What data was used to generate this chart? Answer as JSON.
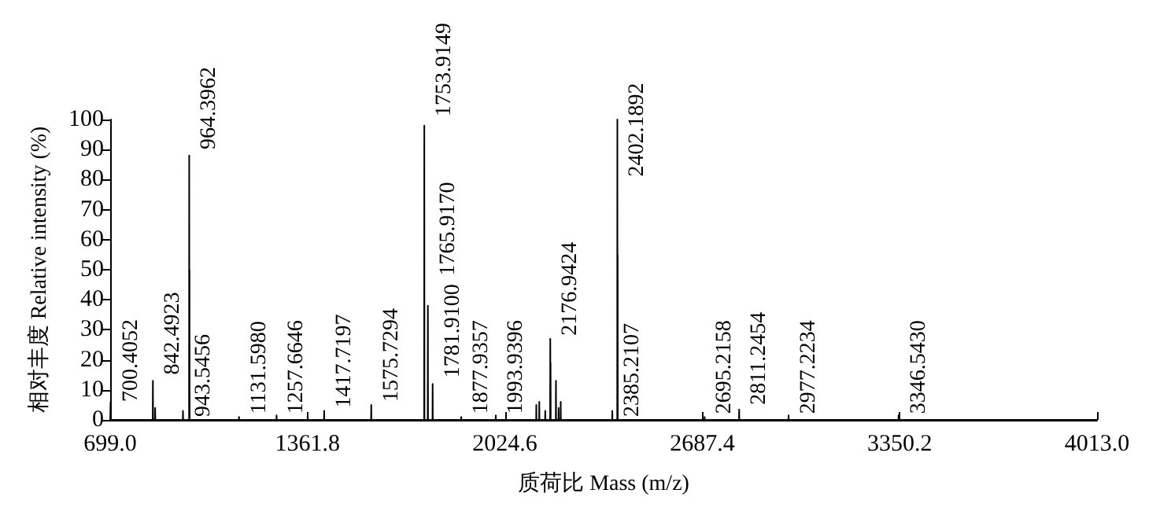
{
  "chart_data": {
    "type": "line",
    "xlabel": "质荷比 Mass (m/z)",
    "ylabel": "相对丰度 Relative intensity (%)",
    "x": [
      699.0,
      699.9,
      700.4,
      700.9,
      841.9,
      842.4923,
      843.1,
      849.5,
      850.0,
      850.5,
      943.0,
      943.5456,
      944.0,
      963.9,
      964.3962,
      964.9,
      965.4,
      965.9,
      1131.1,
      1131.598,
      1132.1,
      1257.1,
      1257.6646,
      1258.2,
      1417.2,
      1417.7197,
      1418.2,
      1575.2,
      1575.7294,
      1576.2,
      1753.4,
      1753.9149,
      1754.4,
      1765.4,
      1765.917,
      1766.4,
      1781.4,
      1781.91,
      1782.4,
      1877.4,
      1877.9357,
      1878.4,
      1993.4,
      1993.9396,
      1994.4,
      2129.5,
      2130.0,
      2130.5,
      2139.5,
      2140.0,
      2140.5,
      2159.5,
      2160.0,
      2160.5,
      2176.4,
      2176.9424,
      2177.4,
      2177.9,
      2178.4,
      2195.5,
      2196.0,
      2196.5,
      2204.5,
      2205.0,
      2205.5,
      2211.5,
      2212.0,
      2212.5,
      2384.7,
      2385.2107,
      2385.7,
      2401.7,
      2402.1892,
      2402.7,
      2403.2,
      2403.7,
      2694.7,
      2695.2158,
      2695.7,
      2810.7,
      2811.2454,
      2811.7,
      2976.7,
      2977.2234,
      2977.7,
      3346.0,
      3346.543,
      3347.0,
      4013.0
    ],
    "series": [
      {
        "color": "#000000",
        "values": [
          0,
          0,
          6,
          0,
          0,
          13,
          0,
          0,
          4,
          0,
          0,
          3,
          0,
          0,
          88,
          20,
          50,
          0,
          0,
          1,
          0,
          0,
          1.5,
          0,
          0,
          3,
          0,
          0,
          5,
          0,
          0,
          98,
          0,
          0,
          38,
          0,
          0,
          12,
          0,
          0,
          1,
          0,
          0,
          1.5,
          0,
          0,
          5,
          0,
          0,
          6,
          0,
          0,
          3,
          0,
          0,
          27,
          10,
          19,
          0,
          0,
          13,
          0,
          0,
          4,
          0,
          0,
          6,
          0,
          0,
          3,
          0,
          0,
          100,
          30,
          55,
          0,
          0,
          1,
          0,
          0,
          3.5,
          0,
          0,
          1.5,
          0,
          0,
          1.5,
          0,
          0
        ]
      }
    ],
    "xlim": [
      699.0,
      4013.0
    ],
    "xticks": [
      {
        "value": 699.0,
        "label": "699.0"
      },
      {
        "value": 1361.8,
        "label": "1361.8"
      },
      {
        "value": 2024.6,
        "label": "2024.6"
      },
      {
        "value": 2687.4,
        "label": "2687.4"
      },
      {
        "value": 3350.2,
        "label": "3350.2"
      },
      {
        "value": 4013.0,
        "label": "4013.0"
      }
    ],
    "ylim": [
      0,
      100
    ],
    "yticks": [
      0,
      10,
      20,
      30,
      40,
      50,
      60,
      70,
      80,
      90,
      100
    ],
    "grid": false,
    "marker": "none",
    "line_style": "solid",
    "annotations": [
      {
        "text": "700.4052",
        "x": 700.4052,
        "y": 5
      },
      {
        "text": "842.4923",
        "x": 842.4923,
        "y": 14
      },
      {
        "text": "943.5456",
        "x": 943.5456,
        "y": 0
      },
      {
        "text": "964.3962",
        "x": 964.3962,
        "y": 89
      },
      {
        "text": "1131.5980",
        "x": 1131.598,
        "y": 1
      },
      {
        "text": "1257.6646",
        "x": 1257.6646,
        "y": 1
      },
      {
        "text": "1417.7197",
        "x": 1417.7197,
        "y": 3
      },
      {
        "text": "1575.7294",
        "x": 1575.7294,
        "y": 5
      },
      {
        "text": "1753.9149",
        "x": 1753.9149,
        "y": 100
      },
      {
        "text": "1765.9170",
        "x": 1765.917,
        "y": 47
      },
      {
        "text": "1781.9100",
        "x": 1781.91,
        "y": 13
      },
      {
        "text": "1877.9357",
        "x": 1877.9357,
        "y": 1
      },
      {
        "text": "1993.9396",
        "x": 1993.9396,
        "y": 1
      },
      {
        "text": "2176.9424",
        "x": 2176.9424,
        "y": 27
      },
      {
        "text": "2385.2107",
        "x": 2385.2107,
        "y": 0
      },
      {
        "text": "2402.1892",
        "x": 2402.1892,
        "y": 80
      },
      {
        "text": "2695.2158",
        "x": 2695.2158,
        "y": 1
      },
      {
        "text": "2811.2454",
        "x": 2811.2454,
        "y": 4
      },
      {
        "text": "2977.2234",
        "x": 2977.2234,
        "y": 1
      },
      {
        "text": "3346.5430",
        "x": 3346.543,
        "y": 1
      }
    ]
  }
}
